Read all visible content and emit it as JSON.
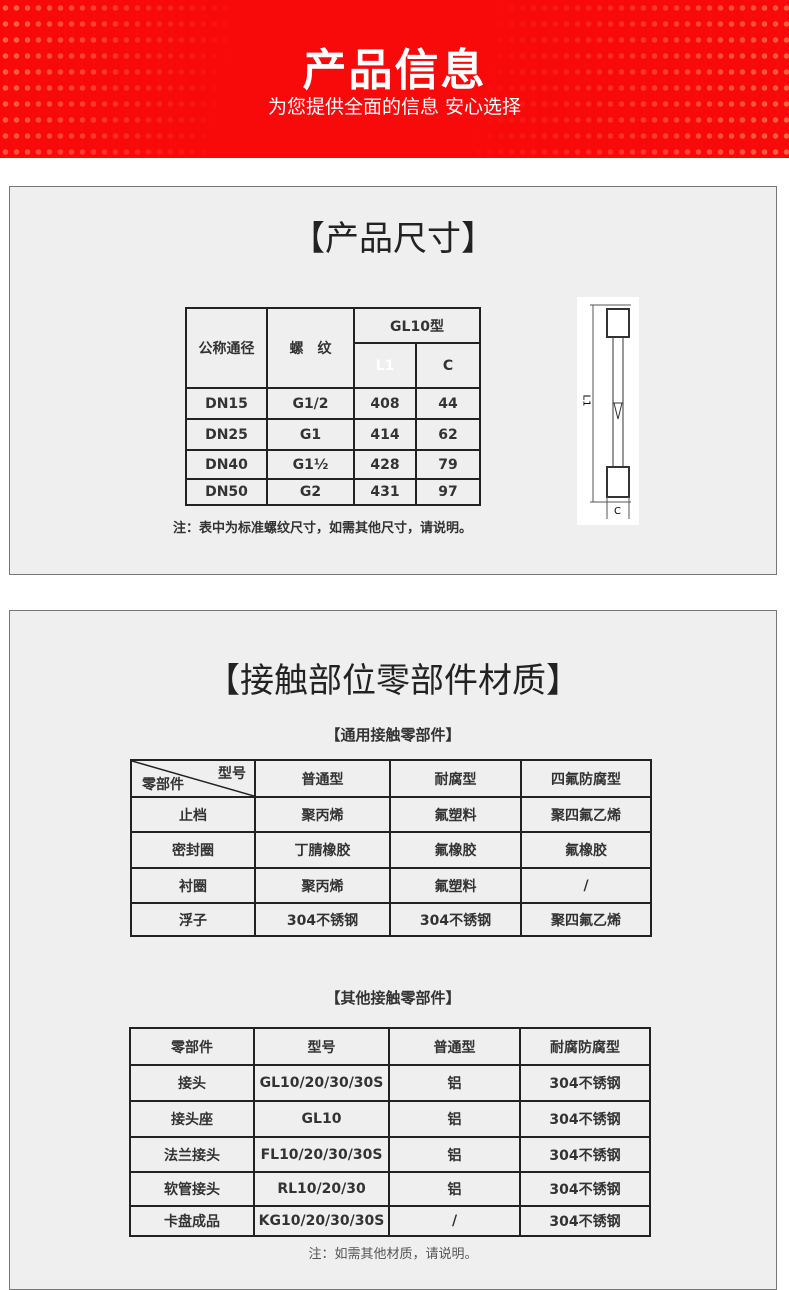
{
  "banner": {
    "title": "产品信息",
    "subtitle": "为您提供全面的信息 安心选择"
  },
  "dimensions": {
    "title": "【产品尺寸】",
    "header": {
      "nominal": "公称通径",
      "thread": "螺　纹",
      "model": "GL10型",
      "l1": "L1",
      "c": "C"
    },
    "rows": [
      [
        "DN15",
        "G1/2",
        "408",
        "44"
      ],
      [
        "DN25",
        "G1",
        "414",
        "62"
      ],
      [
        "DN40",
        "G1½",
        "428",
        "79"
      ],
      [
        "DN50",
        "G2",
        "431",
        "97"
      ]
    ],
    "note": "注：表中为标准螺纹尺寸，如需其他尺寸，请说明。",
    "diagram": {
      "l1_label": "L1",
      "c_label": "C"
    }
  },
  "materials": {
    "title": "【接触部位零部件材质】",
    "common": {
      "subtitle": "【通用接触零部件】",
      "corner_top": "型号",
      "corner_bottom": "零部件",
      "headers": [
        "普通型",
        "耐腐型",
        "四氟防腐型"
      ],
      "rows": [
        [
          "止档",
          "聚丙烯",
          "氟塑料",
          "聚四氟乙烯"
        ],
        [
          "密封圈",
          "丁腈橡胶",
          "氟橡胶",
          "氟橡胶"
        ],
        [
          "衬圈",
          "聚丙烯",
          "氟塑料",
          "/"
        ],
        [
          "浮子",
          "304不锈钢",
          "304不锈钢",
          "聚四氟乙烯"
        ]
      ]
    },
    "other": {
      "subtitle": "【其他接触零部件】",
      "headers": [
        "零部件",
        "型号",
        "普通型",
        "耐腐防腐型"
      ],
      "rows": [
        [
          "接头",
          "GL10/20/30/30S",
          "铝",
          "304不锈钢"
        ],
        [
          "接头座",
          "GL10",
          "铝",
          "304不锈钢"
        ],
        [
          "法兰接头",
          "FL10/20/30/30S",
          "铝",
          "304不锈钢"
        ],
        [
          "软管接头",
          "RL10/20/30",
          "铝",
          "304不锈钢"
        ],
        [
          "卡盘成品",
          "KG10/20/30/30S",
          "/",
          "304不锈钢"
        ]
      ]
    },
    "note": "注：如需其他材质，请说明。"
  }
}
